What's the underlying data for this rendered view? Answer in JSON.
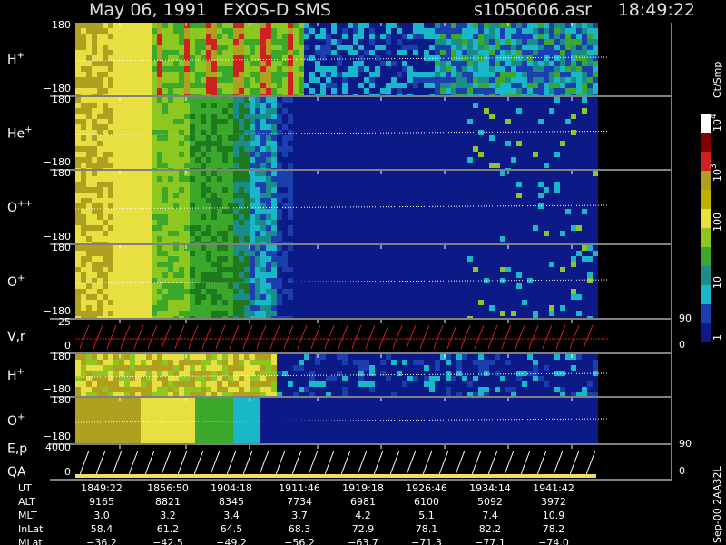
{
  "header": {
    "title": "May 06, 1991   EXOS-D SMS",
    "file": "s1050606.asr",
    "time": "18:49:22"
  },
  "panels": [
    {
      "label": "H",
      "sup": "+",
      "top": "180",
      "bottom": "−180"
    },
    {
      "label": "He",
      "sup": "+",
      "top": "180",
      "bottom": "−180"
    },
    {
      "label": "O",
      "sup": "++",
      "top": "180",
      "bottom": "−180"
    },
    {
      "label": "O",
      "sup": "+",
      "top": "180",
      "bottom": "−180"
    },
    {
      "label": "V,r",
      "top": "25",
      "bottom": "0",
      "right_top": "90",
      "right_bottom": "0"
    },
    {
      "label": "H",
      "sup": "+",
      "top": "180",
      "bottom": "−180"
    },
    {
      "label": "O",
      "sup": "+",
      "top": "180",
      "bottom": "−180"
    },
    {
      "label": "E,p",
      "label2": "QA",
      "top": "4000",
      "bottom": "0",
      "right_top": "90",
      "right_bottom": "0"
    }
  ],
  "colorbar": {
    "unit": "Ct/Smp",
    "ticks": [
      {
        "base": "10",
        "sup": "4"
      },
      {
        "base": "10",
        "sup": "3"
      },
      {
        "base": "100"
      },
      {
        "base": "10"
      },
      {
        "base": "1"
      }
    ]
  },
  "table": {
    "rows": [
      [
        "UT",
        "1849:22",
        "1856:50",
        "1904:18",
        "1911:46",
        "1919:18",
        "1926:46",
        "1934:14",
        "1941:42"
      ],
      [
        "ALT",
        "9165",
        "8821",
        "8345",
        "7734",
        "6981",
        "6100",
        "5092",
        "3972"
      ],
      [
        "MLT",
        "3.0",
        "3.2",
        "3.4",
        "3.7",
        "4.2",
        "5.1",
        "7.4",
        "10.9"
      ],
      [
        "InLat",
        "58.4",
        "61.2",
        "64.5",
        "68.3",
        "72.9",
        "78.1",
        "82.2",
        "78.2"
      ],
      [
        "MLat",
        "−36.2",
        "−42.5",
        "−49.2",
        "−56.2",
        "−63.7",
        "−71.3",
        "−77.1",
        "−74.0"
      ]
    ]
  },
  "footer": "Sep-00 2AA32L"
}
